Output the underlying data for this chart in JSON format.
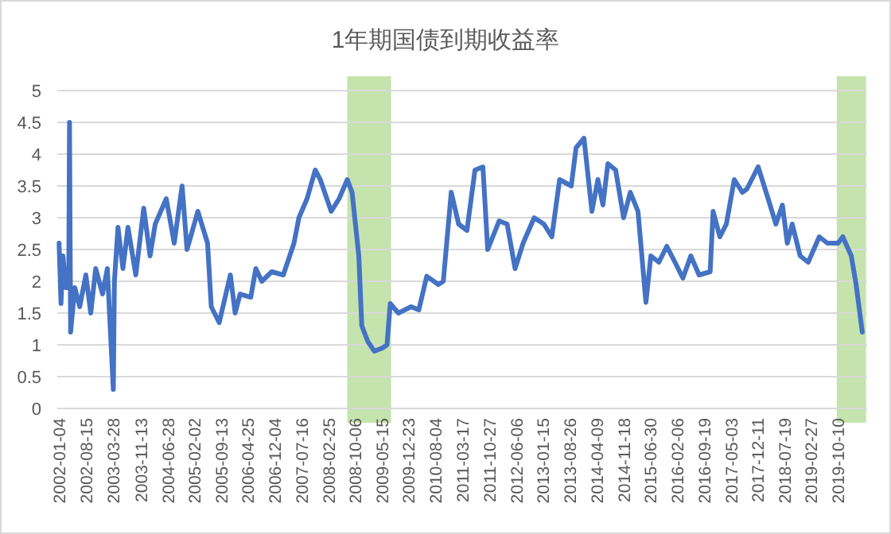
{
  "chart_data": {
    "type": "line",
    "title": "1年期国债到期收益率",
    "x": [
      "2002-01-04",
      "2002-01-20",
      "2002-02-05",
      "2002-03-01",
      "2002-03-25",
      "2002-04-01",
      "2002-04-10",
      "2002-05-15",
      "2002-06-25",
      "2002-08-15",
      "2002-09-25",
      "2002-11-05",
      "2003-01-01",
      "2003-02-10",
      "2003-03-08",
      "2003-04-01",
      "2003-04-10",
      "2003-05-10",
      "2003-06-20",
      "2003-08-01",
      "2003-10-05",
      "2003-12-10",
      "2004-02-01",
      "2004-03-15",
      "2004-06-15",
      "2004-08-20",
      "2004-10-25",
      "2004-12-05",
      "2005-03-05",
      "2005-05-25",
      "2005-06-25",
      "2005-08-30",
      "2005-12-01",
      "2006-01-10",
      "2006-02-20",
      "2006-05-20",
      "2006-07-01",
      "2006-08-20",
      "2006-11-10",
      "2007-02-15",
      "2007-05-15",
      "2007-06-25",
      "2007-09-01",
      "2007-11-08",
      "2007-12-20",
      "2008-03-20",
      "2008-05-25",
      "2008-08-01",
      "2008-09-10",
      "2008-11-05",
      "2008-11-30",
      "2009-01-20",
      "2009-03-15",
      "2009-05-20",
      "2009-06-28",
      "2009-07-25",
      "2009-10-01",
      "2010-01-15",
      "2010-03-20",
      "2010-05-25",
      "2010-08-30",
      "2010-10-10",
      "2010-12-15",
      "2011-02-15",
      "2011-04-25",
      "2011-07-01",
      "2011-09-05",
      "2011-10-15",
      "2012-01-18",
      "2012-03-25",
      "2012-05-30",
      "2012-08-05",
      "2012-11-05",
      "2013-01-25",
      "2013-04-01",
      "2013-06-05",
      "2013-09-10",
      "2013-10-20",
      "2013-12-25",
      "2014-03-01",
      "2014-04-20",
      "2014-06-01",
      "2014-07-12",
      "2014-09-15",
      "2014-11-20",
      "2015-01-15",
      "2015-03-20",
      "2015-05-25",
      "2015-07-05",
      "2015-09-10",
      "2015-11-15",
      "2016-01-22",
      "2016-03-28",
      "2016-06-02",
      "2016-08-10",
      "2016-11-10",
      "2016-12-05",
      "2017-01-30",
      "2017-03-25",
      "2017-05-30",
      "2017-08-05",
      "2017-09-12",
      "2017-12-15",
      "2018-03-08",
      "2018-05-12",
      "2018-07-05",
      "2018-08-15",
      "2018-09-25",
      "2018-11-30",
      "2019-02-05",
      "2019-05-08",
      "2019-07-15",
      "2019-10-12",
      "2019-11-20",
      "2020-01-30",
      "2020-03-10",
      "2020-05-01"
    ],
    "series": [
      {
        "color": "#4472c4",
        "values": [
          2.6,
          1.65,
          2.4,
          1.9,
          1.9,
          4.5,
          1.2,
          1.9,
          1.6,
          2.1,
          1.5,
          2.2,
          1.8,
          2.2,
          1.2,
          0.3,
          2.0,
          2.85,
          2.2,
          2.85,
          2.1,
          3.15,
          2.4,
          2.9,
          3.3,
          2.6,
          3.5,
          2.5,
          3.1,
          2.6,
          1.6,
          1.35,
          2.1,
          1.5,
          1.8,
          1.75,
          2.2,
          2.0,
          2.15,
          2.1,
          2.6,
          3.0,
          3.3,
          3.75,
          3.6,
          3.1,
          3.3,
          3.6,
          3.4,
          2.4,
          1.3,
          1.05,
          0.9,
          0.95,
          1.0,
          1.65,
          1.5,
          1.6,
          1.55,
          2.08,
          1.95,
          2.0,
          3.4,
          2.9,
          2.8,
          3.75,
          3.8,
          2.5,
          2.95,
          2.9,
          2.2,
          2.6,
          3.0,
          2.9,
          2.7,
          3.6,
          3.5,
          4.1,
          4.25,
          3.1,
          3.6,
          3.2,
          3.85,
          3.75,
          3.0,
          3.4,
          3.1,
          1.67,
          2.4,
          2.3,
          2.55,
          2.3,
          2.05,
          2.4,
          2.1,
          2.15,
          3.1,
          2.7,
          2.9,
          3.6,
          3.4,
          3.45,
          3.8,
          3.3,
          2.9,
          3.2,
          2.6,
          2.9,
          2.4,
          2.3,
          2.7,
          2.6,
          2.6,
          2.7,
          2.4,
          1.95,
          1.2
        ]
      }
    ],
    "xlim": [
      "2001-12-20",
      "2020-06-10"
    ],
    "xticks": [
      "2002-01-04",
      "2002-08-15",
      "2003-03-28",
      "2003-11-13",
      "2004-06-28",
      "2005-02-02",
      "2005-09-13",
      "2006-04-25",
      "2006-12-04",
      "2007-07-16",
      "2008-02-25",
      "2008-10-06",
      "2009-05-15",
      "2009-12-23",
      "2010-08-04",
      "2011-03-17",
      "2011-10-27",
      "2012-06-06",
      "2013-01-15",
      "2013-08-26",
      "2014-04-09",
      "2014-11-18",
      "2015-06-30",
      "2016-02-06",
      "2016-09-19",
      "2017-05-03",
      "2017-12-11",
      "2018-07-19",
      "2019-02-27",
      "2019-10-10"
    ],
    "ylim": [
      0,
      5
    ],
    "yticks": [
      0,
      0.5,
      1,
      1.5,
      2,
      2.5,
      3,
      3.5,
      4,
      4.5,
      5
    ],
    "grid": "y",
    "marker": "none",
    "line_style": "solid",
    "bands": [
      {
        "axis": "x",
        "from": "2008-08-01",
        "to": "2009-08-01",
        "color": "#c5e3ad"
      },
      {
        "axis": "x",
        "from": "2019-10-01",
        "to": "2020-06-01",
        "color": "#c5e3ad"
      }
    ]
  }
}
